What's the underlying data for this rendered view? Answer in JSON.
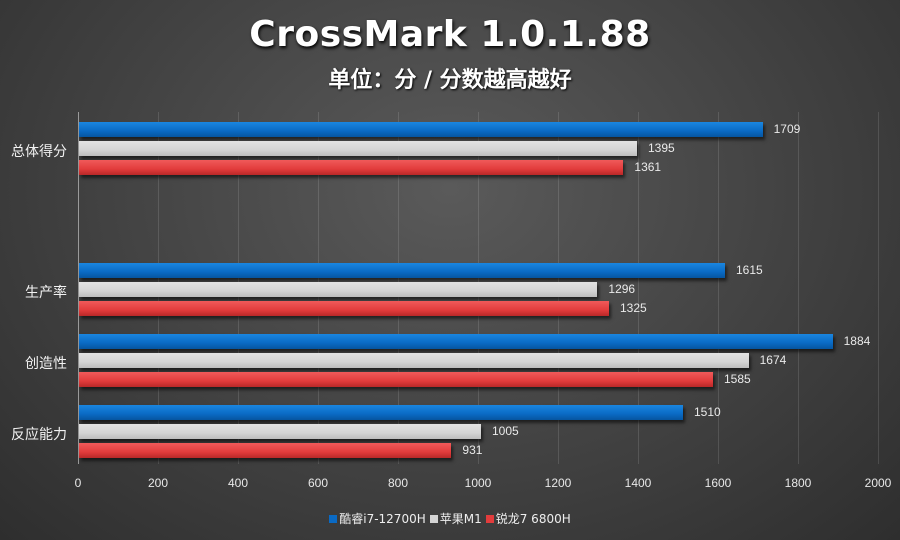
{
  "header": {
    "title": "CrossMark 1.0.1.88",
    "subtitle": "单位：分 / 分数越高越好"
  },
  "legend": [
    {
      "label": "酷睿i7-12700H",
      "color": "#0a6ac4"
    },
    {
      "label": "苹果M1",
      "color": "#d4d4d4"
    },
    {
      "label": "锐龙7 6800H",
      "color": "#e23c3c"
    }
  ],
  "chart_data": {
    "type": "bar",
    "orientation": "horizontal",
    "title": "CrossMark 1.0.1.88",
    "subtitle": "单位：分 / 分数越高越好",
    "categories": [
      "总体得分",
      "生产率",
      "创造性",
      "反应能力"
    ],
    "series": [
      {
        "name": "酷睿i7-12700H",
        "color": "#0a6ac4",
        "values": [
          1709,
          1615,
          1884,
          1510
        ]
      },
      {
        "name": "苹果M1",
        "color": "#d4d4d4",
        "values": [
          1395,
          1296,
          1674,
          1005
        ]
      },
      {
        "name": "锐龙7 6800H",
        "color": "#e23c3c",
        "values": [
          1361,
          1325,
          1585,
          931
        ]
      }
    ],
    "xlim": [
      0,
      2000
    ],
    "xticks": [
      0,
      200,
      400,
      600,
      800,
      1000,
      1200,
      1400,
      1600,
      1800,
      2000
    ],
    "xlabel": "",
    "ylabel": "",
    "grid": true,
    "legend_position": "bottom",
    "data_labels": true
  }
}
